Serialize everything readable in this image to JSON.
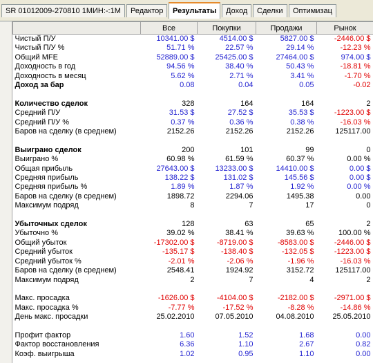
{
  "tabs": [
    {
      "label": "SR 01012009-270810 1МИН:-:1М",
      "active": false
    },
    {
      "label": "Редактор",
      "active": false
    },
    {
      "label": "Результаты",
      "active": true
    },
    {
      "label": "Доход",
      "active": false
    },
    {
      "label": "Сделки",
      "active": false
    },
    {
      "label": "Оптимизац",
      "active": false
    }
  ],
  "table": {
    "columns": [
      "Все",
      "Покупки",
      "Продажи",
      "Рынок"
    ],
    "sections": [
      {
        "rows": [
          {
            "label": "Чистый П/У",
            "values": [
              "10341.00 $",
              "4514.00 $",
              "5827.00 $",
              "-2446.00 $"
            ],
            "bold": false,
            "colored": true
          },
          {
            "label": "Чистый П/У %",
            "values": [
              "51.71 %",
              "22.57 %",
              "29.14 %",
              "-12.23 %"
            ],
            "bold": false,
            "colored": true
          },
          {
            "label": "Общий MFE",
            "values": [
              "52889.00 $",
              "25425.00 $",
              "27464.00 $",
              "974.00 $"
            ],
            "bold": false,
            "colored": true
          },
          {
            "label": "Доходность в год",
            "values": [
              "94.56 %",
              "38.40 %",
              "50.43 %",
              "-18.81 %"
            ],
            "bold": false,
            "colored": true
          },
          {
            "label": "Доходность в месяц",
            "values": [
              "5.62 %",
              "2.71 %",
              "3.41 %",
              "-1.70 %"
            ],
            "bold": false,
            "colored": true
          },
          {
            "label": "Доход за бар",
            "values": [
              "0.08",
              "0.04",
              "0.05",
              "-0.02"
            ],
            "bold": true,
            "colored": true
          }
        ]
      },
      {
        "rows": [
          {
            "label": "Количество сделок",
            "values": [
              "328",
              "164",
              "164",
              "2"
            ],
            "bold": true,
            "colored": false
          },
          {
            "label": "Средний П/У",
            "values": [
              "31.53 $",
              "27.52 $",
              "35.53 $",
              "-1223.00 $"
            ],
            "bold": false,
            "colored": true
          },
          {
            "label": "Средний П/У %",
            "values": [
              "0.37 %",
              "0.36 %",
              "0.38 %",
              "-16.03 %"
            ],
            "bold": false,
            "colored": true
          },
          {
            "label": "Баров на сделку (в среднем)",
            "values": [
              "2152.26",
              "2152.26",
              "2152.26",
              "125117.00"
            ],
            "bold": false,
            "colored": false
          }
        ]
      },
      {
        "rows": [
          {
            "label": "Выиграно сделок",
            "values": [
              "200",
              "101",
              "99",
              "0"
            ],
            "bold": true,
            "colored": false
          },
          {
            "label": "Выиграно %",
            "values": [
              "60.98 %",
              "61.59 %",
              "60.37 %",
              "0.00 %"
            ],
            "bold": false,
            "colored": false
          },
          {
            "label": "Общая прибыль",
            "values": [
              "27643.00 $",
              "13233.00 $",
              "14410.00 $",
              "0.00 $"
            ],
            "bold": false,
            "colored": true
          },
          {
            "label": "Средняя прибыль",
            "values": [
              "138.22 $",
              "131.02 $",
              "145.56 $",
              "0.00 $"
            ],
            "bold": false,
            "colored": true
          },
          {
            "label": "Средняя прибыль %",
            "values": [
              "1.89 %",
              "1.87 %",
              "1.92 %",
              "0.00 %"
            ],
            "bold": false,
            "colored": true
          },
          {
            "label": "Баров на сделку (в среднем)",
            "values": [
              "1898.72",
              "2294.06",
              "1495.38",
              "0.00"
            ],
            "bold": false,
            "colored": false
          },
          {
            "label": "Максимум подряд",
            "values": [
              "8",
              "7",
              "17",
              "0"
            ],
            "bold": false,
            "colored": false
          }
        ]
      },
      {
        "rows": [
          {
            "label": "Убыточных сделок",
            "values": [
              "128",
              "63",
              "65",
              "2"
            ],
            "bold": true,
            "colored": false
          },
          {
            "label": "Убыточно %",
            "values": [
              "39.02 %",
              "38.41 %",
              "39.63 %",
              "100.00 %"
            ],
            "bold": false,
            "colored": false
          },
          {
            "label": "Общий убыток",
            "values": [
              "-17302.00 $",
              "-8719.00 $",
              "-8583.00 $",
              "-2446.00 $"
            ],
            "bold": false,
            "colored": true
          },
          {
            "label": "Средний убыток",
            "values": [
              "-135.17 $",
              "-138.40 $",
              "-132.05 $",
              "-1223.00 $"
            ],
            "bold": false,
            "colored": true
          },
          {
            "label": "Средний убыток %",
            "values": [
              "-2.01 %",
              "-2.06 %",
              "-1.96 %",
              "-16.03 %"
            ],
            "bold": false,
            "colored": true
          },
          {
            "label": "Баров на сделку (в среднем)",
            "values": [
              "2548.41",
              "1924.92",
              "3152.72",
              "125117.00"
            ],
            "bold": false,
            "colored": false
          },
          {
            "label": "Максимум подряд",
            "values": [
              "2",
              "7",
              "4",
              "2"
            ],
            "bold": false,
            "colored": false
          }
        ]
      },
      {
        "rows": [
          {
            "label": "Макс. просадка",
            "values": [
              "-1626.00 $",
              "-4104.00 $",
              "-2182.00 $",
              "-2971.00 $"
            ],
            "bold": false,
            "colored": true
          },
          {
            "label": "Макс. просадка %",
            "values": [
              "-7.77 %",
              "-17.52 %",
              "-8.28 %",
              "-14.86 %"
            ],
            "bold": false,
            "colored": true
          },
          {
            "label": "День макс. просадки",
            "values": [
              "25.02.2010",
              "07.05.2010",
              "04.08.2010",
              "25.05.2010"
            ],
            "bold": false,
            "colored": false
          }
        ]
      },
      {
        "rows": [
          {
            "label": "Профит фактор",
            "values": [
              "1.60",
              "1.52",
              "1.68",
              "0.00"
            ],
            "bold": false,
            "colored": true
          },
          {
            "label": "Фактор восстановления",
            "values": [
              "6.36",
              "1.10",
              "2.67",
              "0.82"
            ],
            "bold": false,
            "colored": true
          },
          {
            "label": "Коэф. выигрыша",
            "values": [
              "1.02",
              "0.95",
              "1.10",
              "0.00"
            ],
            "bold": false,
            "colored": true
          }
        ]
      }
    ]
  }
}
